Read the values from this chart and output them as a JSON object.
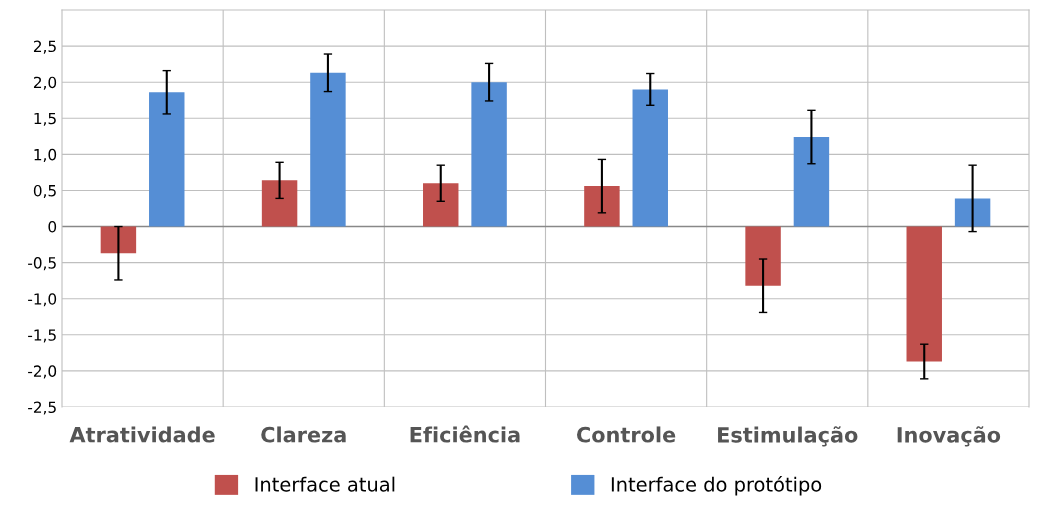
{
  "chart_data": {
    "type": "bar",
    "categories": [
      "Atratividade",
      "Clareza",
      "Eficiência",
      "Controle",
      "Estimulação",
      "Inovação"
    ],
    "series": [
      {
        "name": "Interface atual",
        "color": "#c0504d",
        "values": [
          -0.37,
          0.64,
          0.6,
          0.56,
          -0.82,
          -1.87
        ],
        "errors": [
          0.37,
          0.25,
          0.25,
          0.37,
          0.37,
          0.24
        ]
      },
      {
        "name": "Interface do protótipo",
        "color": "#558ed5",
        "values": [
          1.86,
          2.13,
          2.0,
          1.9,
          1.24,
          0.39
        ],
        "errors": [
          0.3,
          0.26,
          0.26,
          0.22,
          0.37,
          0.46
        ]
      }
    ],
    "ylim": [
      -2.5,
      3.0
    ],
    "yticks": [
      {
        "value": -2.5,
        "label": "-2,5"
      },
      {
        "value": -2.0,
        "label": "-2,0"
      },
      {
        "value": -1.5,
        "label": "-1,5"
      },
      {
        "value": -1.0,
        "label": "-1,0"
      },
      {
        "value": -0.5,
        "label": "-0,5"
      },
      {
        "value": 0,
        "label": "0"
      },
      {
        "value": 0.5,
        "label": "0,5"
      },
      {
        "value": 1.0,
        "label": "1,0"
      },
      {
        "value": 1.5,
        "label": "1,5"
      },
      {
        "value": 2.0,
        "label": "2,0"
      },
      {
        "value": 2.5,
        "label": "2,5"
      }
    ],
    "grid": true,
    "legend": "bottom"
  }
}
